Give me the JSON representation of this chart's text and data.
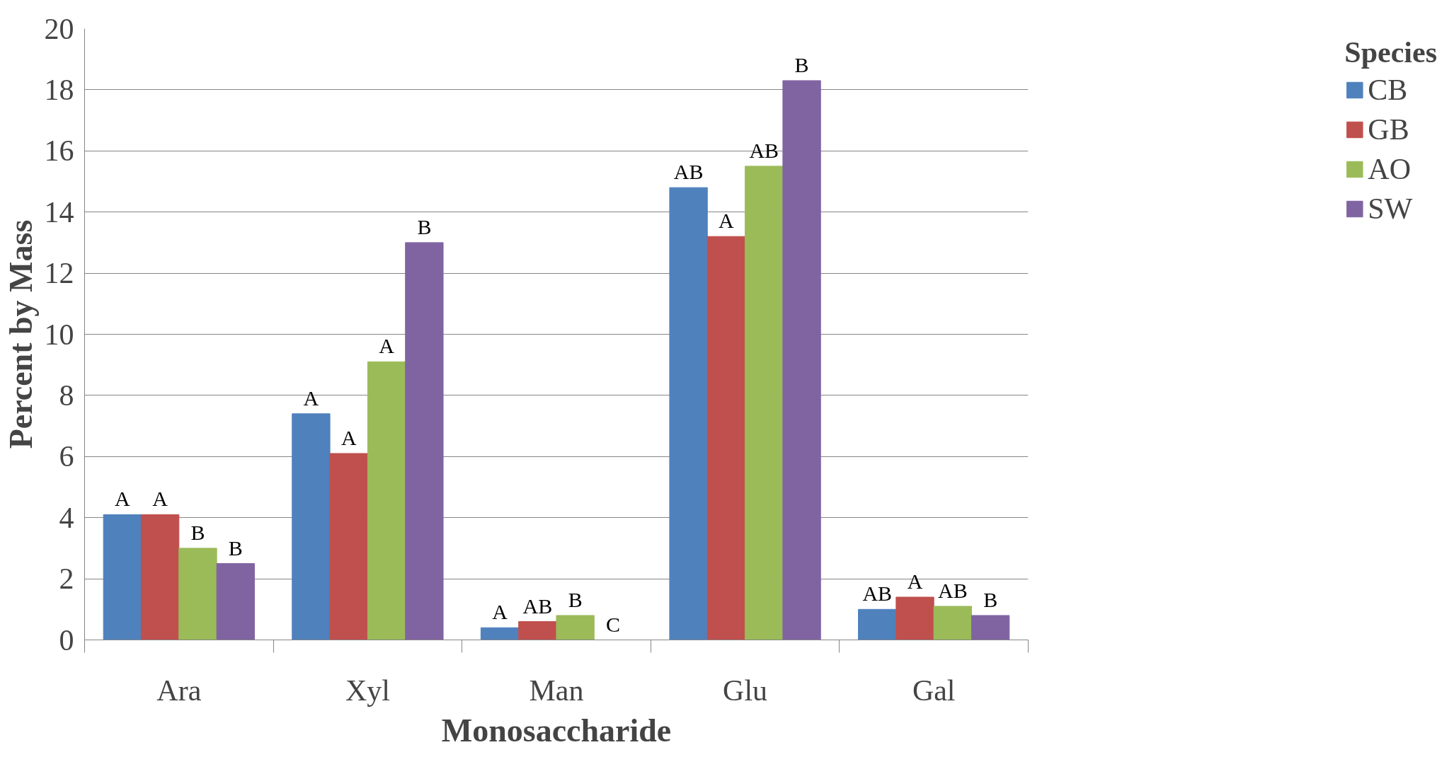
{
  "chart_data": {
    "type": "bar",
    "xlabel": "Monosaccharide",
    "ylabel": "Percent by Mass",
    "legend_title": "Species",
    "categories": [
      "Ara",
      "Xyl",
      "Man",
      "Glu",
      "Gal"
    ],
    "series": [
      {
        "name": "CB",
        "color": "#4f81bd",
        "values": [
          4.1,
          7.4,
          0.4,
          14.8,
          1.0
        ],
        "value_labels": [
          "A",
          "A",
          "A",
          "AB",
          "AB"
        ]
      },
      {
        "name": "GB",
        "color": "#c0504d",
        "values": [
          4.1,
          6.1,
          0.6,
          13.2,
          1.4
        ],
        "value_labels": [
          "A",
          "A",
          "AB",
          "A",
          "A"
        ]
      },
      {
        "name": "AO",
        "color": "#9bbb59",
        "values": [
          3.0,
          9.1,
          0.8,
          15.5,
          1.1
        ],
        "value_labels": [
          "B",
          "A",
          "B",
          "AB",
          "AB"
        ]
      },
      {
        "name": "SW",
        "color": "#8064a2",
        "values": [
          2.5,
          13.0,
          0.0,
          18.3,
          0.8
        ],
        "value_labels": [
          "B",
          "B",
          "C",
          "B",
          "B"
        ]
      }
    ],
    "ylim": [
      0,
      20
    ],
    "yticks": [
      0,
      2,
      4,
      6,
      8,
      10,
      12,
      14,
      16,
      18,
      20
    ],
    "grid": "y",
    "legend": "right"
  }
}
